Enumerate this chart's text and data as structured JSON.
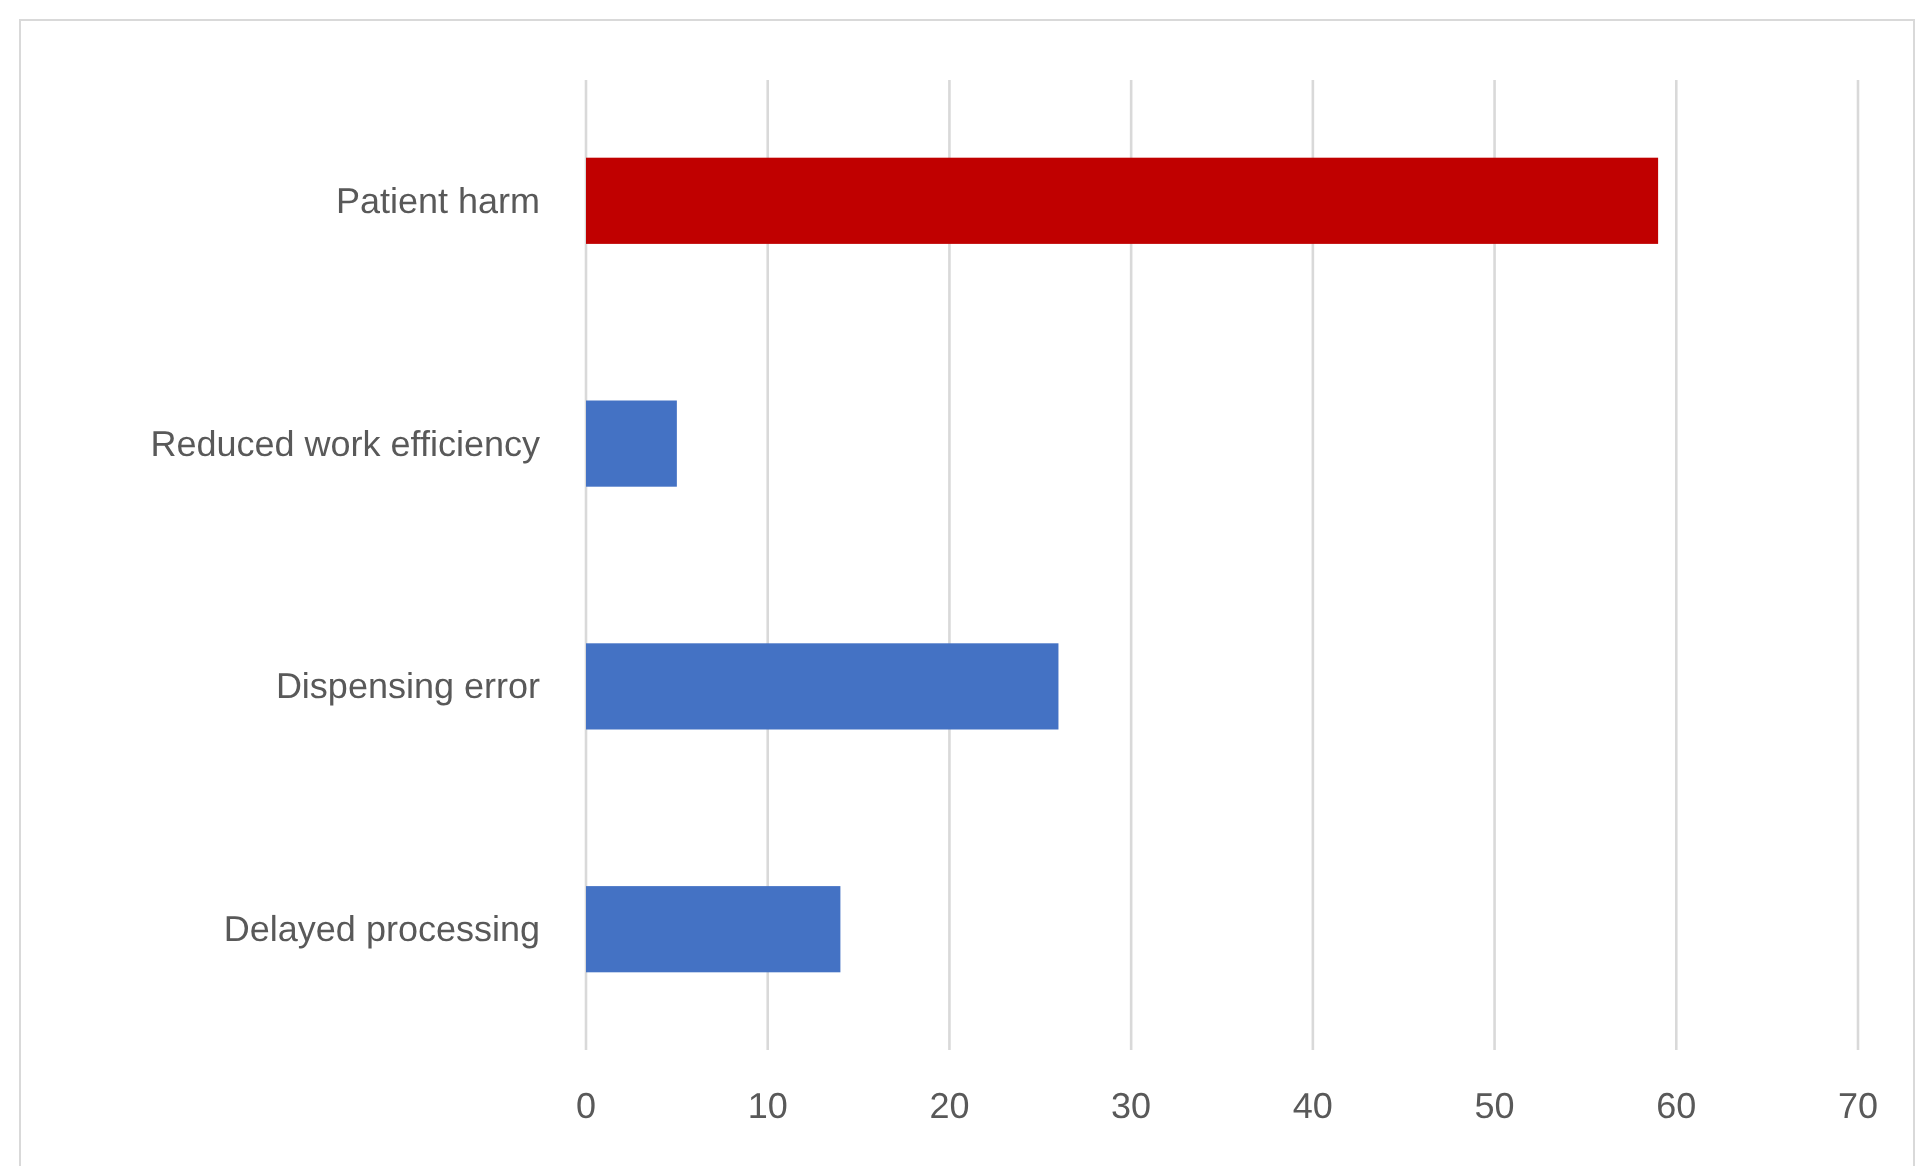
{
  "chart_data": {
    "type": "bar",
    "orientation": "horizontal",
    "categories": [
      "Patient harm",
      "Reduced work efficiency ",
      "Dispensing error",
      "Delayed processing "
    ],
    "values": [
      59,
      5,
      26,
      14
    ],
    "colors": [
      "#c00000",
      "#4472c4",
      "#4472c4",
      "#4472c4"
    ],
    "xlim": [
      0,
      70
    ],
    "xticks": [
      0,
      10,
      20,
      30,
      40,
      50,
      60,
      70
    ],
    "grid": "x"
  }
}
